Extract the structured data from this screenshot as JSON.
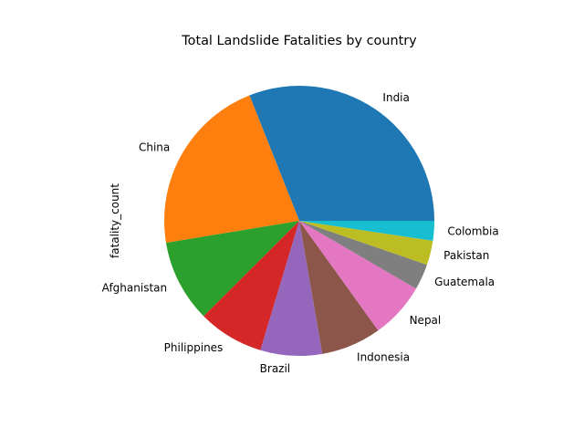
{
  "chart_data": {
    "type": "pie",
    "title": "Total Landslide Fatalities by country",
    "ylabel": "fatality_count",
    "start_angle_deg": 0,
    "direction": "counterclockwise",
    "slices": [
      {
        "label": "India",
        "value": 5000,
        "color": "#1f77b4"
      },
      {
        "label": "China",
        "value": 3480,
        "color": "#ff7f0e"
      },
      {
        "label": "Afghanistan",
        "value": 1590,
        "color": "#2ca02c"
      },
      {
        "label": "Philippines",
        "value": 1270,
        "color": "#d62728"
      },
      {
        "label": "Brazil",
        "value": 1190,
        "color": "#9467bd"
      },
      {
        "label": "Indonesia",
        "value": 1160,
        "color": "#8c564b"
      },
      {
        "label": "Nepal",
        "value": 1080,
        "color": "#e377c2"
      },
      {
        "label": "Guatemala",
        "value": 500,
        "color": "#7f7f7f"
      },
      {
        "label": "Pakistan",
        "value": 470,
        "color": "#bcbd22"
      },
      {
        "label": "Colombia",
        "value": 380,
        "color": "#17becf"
      }
    ]
  }
}
